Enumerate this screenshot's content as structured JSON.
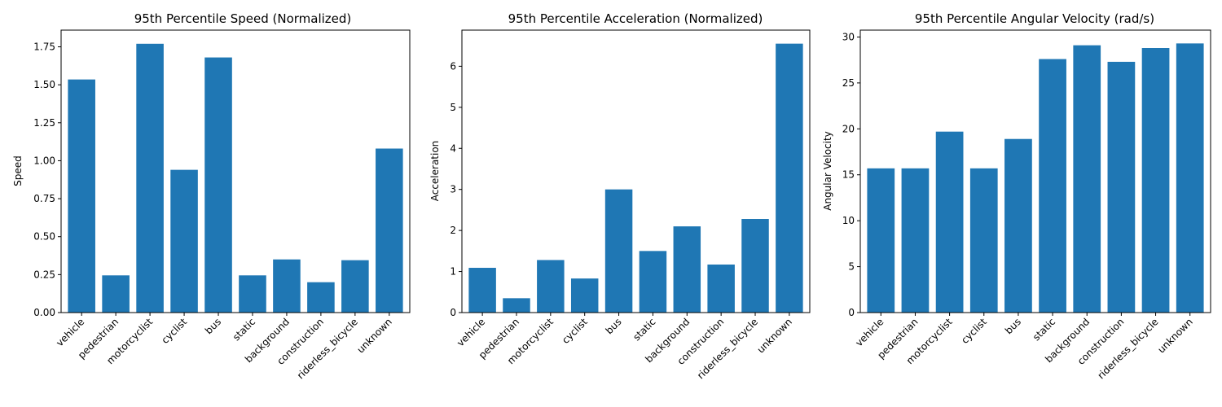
{
  "colors": {
    "bar": "#1f77b4",
    "axis": "#000000",
    "background": "#ffffff"
  },
  "chart_data": [
    {
      "type": "bar",
      "title": "95th Percentile Speed (Normalized)",
      "xlabel": "",
      "ylabel": "Speed",
      "ylim": [
        0,
        1.86
      ],
      "yticks": [
        0,
        0.25,
        0.5,
        0.75,
        1.0,
        1.25,
        1.5,
        1.75
      ],
      "ytick_labels": [
        "0.00",
        "0.25",
        "0.50",
        "0.75",
        "1.00",
        "1.25",
        "1.50",
        "1.75"
      ],
      "categories": [
        "vehicle",
        "pedestrian",
        "motorcyclist",
        "cyclist",
        "bus",
        "static",
        "background",
        "construction",
        "riderless_bicycle",
        "unknown"
      ],
      "values": [
        1.535,
        0.245,
        1.77,
        0.94,
        1.68,
        0.245,
        0.35,
        0.2,
        0.345,
        1.08
      ],
      "grid": false,
      "legend": "none"
    },
    {
      "type": "bar",
      "title": "95th Percentile Acceleration (Normalized)",
      "xlabel": "",
      "ylabel": "Acceleration",
      "ylim": [
        0,
        6.88
      ],
      "yticks": [
        0,
        1,
        2,
        3,
        4,
        5,
        6
      ],
      "ytick_labels": [
        "0",
        "1",
        "2",
        "3",
        "4",
        "5",
        "6"
      ],
      "categories": [
        "vehicle",
        "pedestrian",
        "motorcyclist",
        "cyclist",
        "bus",
        "static",
        "background",
        "construction",
        "riderless_bicycle",
        "unknown"
      ],
      "values": [
        1.09,
        0.35,
        1.28,
        0.83,
        3.0,
        1.5,
        2.1,
        1.17,
        2.28,
        6.55
      ],
      "grid": false,
      "legend": "none"
    },
    {
      "type": "bar",
      "title": "95th Percentile Angular Velocity (rad/s)",
      "xlabel": "",
      "ylabel": "Angular Velocity",
      "ylim": [
        0,
        30.75
      ],
      "yticks": [
        0,
        5,
        10,
        15,
        20,
        25,
        30
      ],
      "ytick_labels": [
        "0",
        "5",
        "10",
        "15",
        "20",
        "25",
        "30"
      ],
      "categories": [
        "vehicle",
        "pedestrian",
        "motorcyclist",
        "cyclist",
        "bus",
        "static",
        "background",
        "construction",
        "riderless_bicycle",
        "unknown"
      ],
      "values": [
        15.7,
        15.7,
        19.7,
        15.7,
        18.9,
        27.6,
        29.1,
        27.3,
        28.8,
        29.3
      ],
      "grid": false,
      "legend": "none"
    }
  ]
}
